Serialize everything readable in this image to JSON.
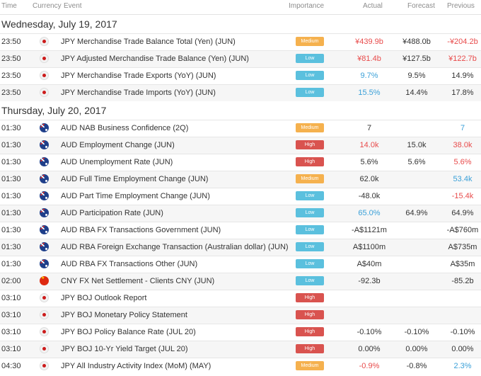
{
  "columns": {
    "time": "Time",
    "currency": "Currency",
    "event": "Event",
    "importance": "Importance",
    "actual": "Actual",
    "forecast": "Forecast",
    "previous": "Previous"
  },
  "colors": {
    "medium": "#f5b14e",
    "low": "#5bc0de",
    "high": "#d9534f",
    "negative": "#e84b4b",
    "positive": "#3aa0d8"
  },
  "days": [
    {
      "date": "Wednesday, July 19, 2017",
      "rows": [
        {
          "time": "23:50",
          "flag": "jp",
          "event": "JPY Merchandise Trade Balance Total (Yen) (JUN)",
          "importance": "Medium",
          "actual": "¥439.9b",
          "actual_color": "red",
          "forecast": "¥488.0b",
          "previous": "-¥204.2b",
          "previous_color": "red"
        },
        {
          "time": "23:50",
          "flag": "jp",
          "event": "JPY Adjusted Merchandise Trade Balance (Yen) (JUN)",
          "importance": "Low",
          "actual": "¥81.4b",
          "actual_color": "red",
          "forecast": "¥127.5b",
          "previous": "¥122.7b",
          "previous_color": "red"
        },
        {
          "time": "23:50",
          "flag": "jp",
          "event": "JPY Merchandise Trade Exports (YoY) (JUN)",
          "importance": "Low",
          "actual": "9.7%",
          "actual_color": "blue",
          "forecast": "9.5%",
          "previous": "14.9%",
          "previous_color": "dark"
        },
        {
          "time": "23:50",
          "flag": "jp",
          "event": "JPY Merchandise Trade Imports (YoY) (JUN)",
          "importance": "Low",
          "actual": "15.5%",
          "actual_color": "blue",
          "forecast": "14.4%",
          "previous": "17.8%",
          "previous_color": "dark"
        }
      ]
    },
    {
      "date": "Thursday, July 20, 2017",
      "rows": [
        {
          "time": "01:30",
          "flag": "au",
          "event": "AUD NAB Business Confidence (2Q)",
          "importance": "Medium",
          "actual": "7",
          "actual_color": "dark",
          "forecast": "",
          "previous": "7",
          "previous_color": "blue"
        },
        {
          "time": "01:30",
          "flag": "au",
          "event": "AUD Employment Change (JUN)",
          "importance": "High",
          "actual": "14.0k",
          "actual_color": "red",
          "forecast": "15.0k",
          "previous": "38.0k",
          "previous_color": "red"
        },
        {
          "time": "01:30",
          "flag": "au",
          "event": "AUD Unemployment Rate (JUN)",
          "importance": "High",
          "actual": "5.6%",
          "actual_color": "dark",
          "forecast": "5.6%",
          "previous": "5.6%",
          "previous_color": "red"
        },
        {
          "time": "01:30",
          "flag": "au",
          "event": "AUD Full Time Employment Change (JUN)",
          "importance": "Medium",
          "actual": "62.0k",
          "actual_color": "dark",
          "forecast": "",
          "previous": "53.4k",
          "previous_color": "blue"
        },
        {
          "time": "01:30",
          "flag": "au",
          "event": "AUD Part Time Employment Change (JUN)",
          "importance": "Low",
          "actual": "-48.0k",
          "actual_color": "dark",
          "forecast": "",
          "previous": "-15.4k",
          "previous_color": "red"
        },
        {
          "time": "01:30",
          "flag": "au",
          "event": "AUD Participation Rate (JUN)",
          "importance": "Low",
          "actual": "65.0%",
          "actual_color": "blue",
          "forecast": "64.9%",
          "previous": "64.9%",
          "previous_color": "dark"
        },
        {
          "time": "01:30",
          "flag": "au",
          "event": "AUD RBA FX Transactions Government (JUN)",
          "importance": "Low",
          "actual": "-A$1121m",
          "actual_color": "dark",
          "forecast": "",
          "previous": "-A$760m",
          "previous_color": "dark"
        },
        {
          "time": "01:30",
          "flag": "au",
          "event": "AUD RBA Foreign Exchange Transaction (Australian dollar) (JUN)",
          "importance": "Low",
          "actual": "A$1100m",
          "actual_color": "dark",
          "forecast": "",
          "previous": "A$735m",
          "previous_color": "dark"
        },
        {
          "time": "01:30",
          "flag": "au",
          "event": "AUD RBA FX Transactions Other (JUN)",
          "importance": "Low",
          "actual": "A$40m",
          "actual_color": "dark",
          "forecast": "",
          "previous": "A$35m",
          "previous_color": "dark"
        },
        {
          "time": "02:00",
          "flag": "cn",
          "event": "CNY FX Net Settlement - Clients CNY (JUN)",
          "importance": "Low",
          "actual": "-92.3b",
          "actual_color": "dark",
          "forecast": "",
          "previous": "-85.2b",
          "previous_color": "dark"
        },
        {
          "time": "03:10",
          "flag": "jp",
          "event": "JPY BOJ Outlook Report",
          "importance": "High",
          "actual": "",
          "actual_color": "dark",
          "forecast": "",
          "previous": "",
          "previous_color": "dark"
        },
        {
          "time": "03:10",
          "flag": "jp",
          "event": "JPY BOJ Monetary Policy Statement",
          "importance": "High",
          "actual": "",
          "actual_color": "dark",
          "forecast": "",
          "previous": "",
          "previous_color": "dark"
        },
        {
          "time": "03:10",
          "flag": "jp",
          "event": "JPY BOJ Policy Balance Rate (JUL 20)",
          "importance": "High",
          "actual": "-0.10%",
          "actual_color": "dark",
          "forecast": "-0.10%",
          "previous": "-0.10%",
          "previous_color": "dark"
        },
        {
          "time": "03:10",
          "flag": "jp",
          "event": "JPY BOJ 10-Yr Yield Target (JUL 20)",
          "importance": "High",
          "actual": "0.00%",
          "actual_color": "dark",
          "forecast": "0.00%",
          "previous": "0.00%",
          "previous_color": "dark"
        },
        {
          "time": "04:30",
          "flag": "jp",
          "event": "JPY All Industry Activity Index (MoM) (MAY)",
          "importance": "Medium",
          "actual": "-0.9%",
          "actual_color": "red",
          "forecast": "-0.8%",
          "previous": "2.3%",
          "previous_color": "blue"
        }
      ]
    }
  ]
}
